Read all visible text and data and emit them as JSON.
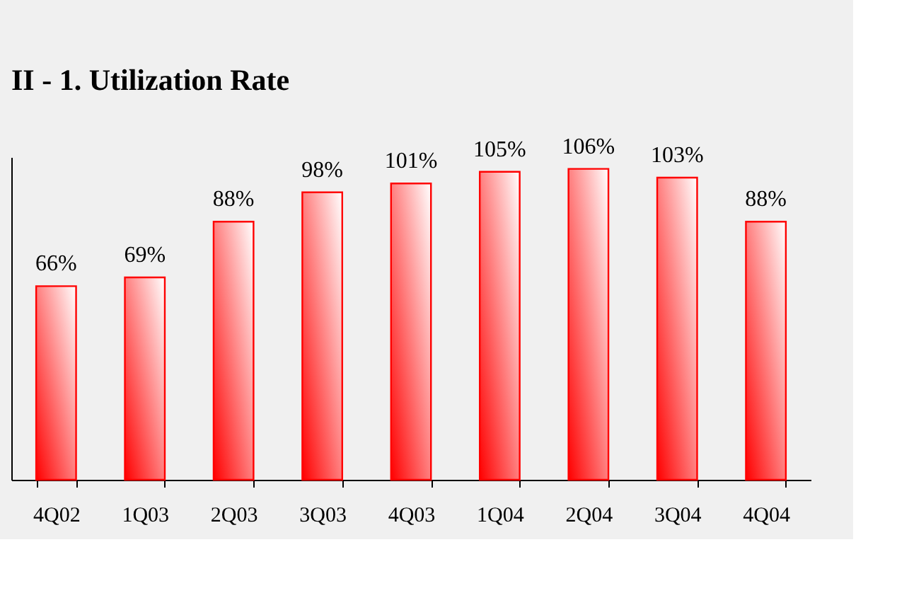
{
  "chart_data": {
    "type": "bar",
    "title": "II - 1. Utilization Rate",
    "categories": [
      "4Q02",
      "1Q03",
      "2Q03",
      "3Q03",
      "4Q03",
      "1Q04",
      "2Q04",
      "3Q04",
      "4Q04"
    ],
    "values": [
      66,
      69,
      88,
      98,
      101,
      105,
      106,
      103,
      88
    ],
    "value_labels": [
      "66%",
      "69%",
      "88%",
      "98%",
      "101%",
      "105%",
      "106%",
      "103%",
      "88%"
    ],
    "color": "#ff0000",
    "ylim": [
      0,
      110
    ],
    "tick_labels": "x",
    "grid": false
  }
}
